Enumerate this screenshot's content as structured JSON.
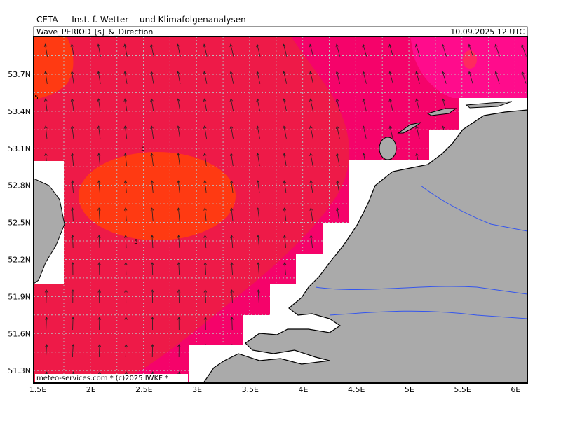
{
  "header": {
    "title": "CETA — Inst. f. Wetter— und Klimafolgenanalysen —",
    "product": "Wave_PERIOD_[s]_&_Direction",
    "time": "10.09.2025 12 UTC"
  },
  "axes": {
    "x_labels": [
      "1.5E",
      "2E",
      "2.5E",
      "3E",
      "3.5E",
      "4E",
      "4.5E",
      "5E",
      "5.5E",
      "6E"
    ],
    "y_labels": [
      "53.7N",
      "53.4N",
      "53.1N",
      "52.8N",
      "52.5N",
      "52.2N",
      "51.9N",
      "51.6N",
      "51.3N"
    ]
  },
  "contour_labels": [
    "5",
    "5",
    "5"
  ],
  "credit": "meteo-services.com * (c)2025 IWKF *"
}
